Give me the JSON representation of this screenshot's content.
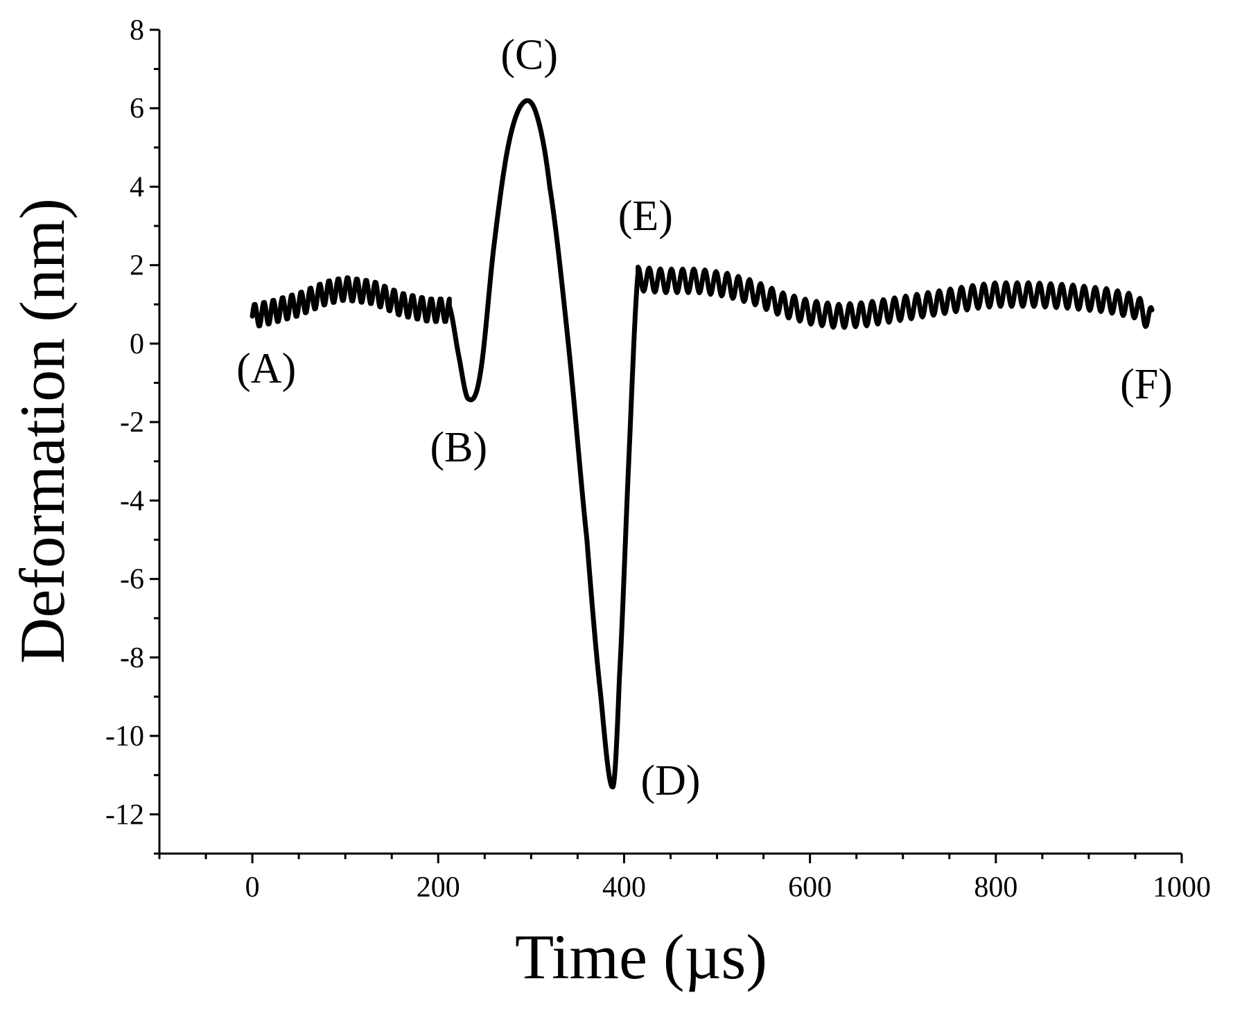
{
  "chart_data": {
    "type": "line",
    "title": "",
    "xlabel": "Time (µs)",
    "ylabel": "Deformation (nm)",
    "xlim": [
      -100,
      1000
    ],
    "ylim": [
      -13,
      8
    ],
    "grid": false,
    "x_ticks": [
      0,
      200,
      400,
      600,
      800,
      1000
    ],
    "x_tick_labels": [
      "0",
      "200",
      "400",
      "600",
      "800",
      "1000"
    ],
    "x_minor_step": 50,
    "y_ticks": [
      8,
      6,
      4,
      2,
      0,
      -2,
      -4,
      -6,
      -8,
      -10,
      -12
    ],
    "y_tick_labels": [
      "8",
      "6",
      "4",
      "2",
      "0",
      "-2",
      "-4",
      "-6",
      "-8",
      "-10",
      "-12"
    ],
    "y_minor_step": 1,
    "series": [
      {
        "name": "Deformation",
        "color": "#000000",
        "envelope": {
          "x": [
            0,
            20,
            50,
            80,
            100,
            130,
            160,
            190,
            212
          ],
          "y": [
            0.7,
            0.8,
            1.0,
            1.3,
            1.4,
            1.3,
            1.0,
            0.85,
            0.85
          ],
          "oscillation_period": 10,
          "oscillation_amplitude": 0.3
        },
        "main_pulse": {
          "x": [
            212,
            222,
            232,
            245,
            260,
            275,
            290,
            305,
            320,
            340,
            360,
            375,
            388,
            395,
            405,
            415
          ],
          "y": [
            0.95,
            -0.3,
            -1.4,
            -0.8,
            2.5,
            5.0,
            6.1,
            5.9,
            4.0,
            0.0,
            -5.0,
            -9.0,
            -11.3,
            -8.5,
            -3.0,
            1.8
          ]
        },
        "tail": {
          "x": [
            415,
            440,
            480,
            510,
            540,
            570,
            600,
            630,
            660,
            700,
            740,
            780,
            800,
            840,
            880,
            920,
            950,
            968
          ],
          "y": [
            1.65,
            1.6,
            1.6,
            1.5,
            1.3,
            1.0,
            0.8,
            0.7,
            0.75,
            0.9,
            1.05,
            1.2,
            1.25,
            1.25,
            1.2,
            1.1,
            0.95,
            0.6
          ],
          "oscillation_period": 12,
          "oscillation_amplitude": 0.3
        }
      }
    ],
    "annotations": [
      {
        "text": "(A)",
        "x": 15,
        "y": -1.0
      },
      {
        "text": "(B)",
        "x": 222,
        "y": -3.0
      },
      {
        "text": "(C)",
        "x": 298,
        "y": 7.0
      },
      {
        "text": "(E)",
        "x": 423,
        "y": 2.9
      },
      {
        "text": "(D)",
        "x": 450,
        "y": -11.5
      },
      {
        "text": "(F)",
        "x": 962,
        "y": -1.4
      }
    ]
  }
}
